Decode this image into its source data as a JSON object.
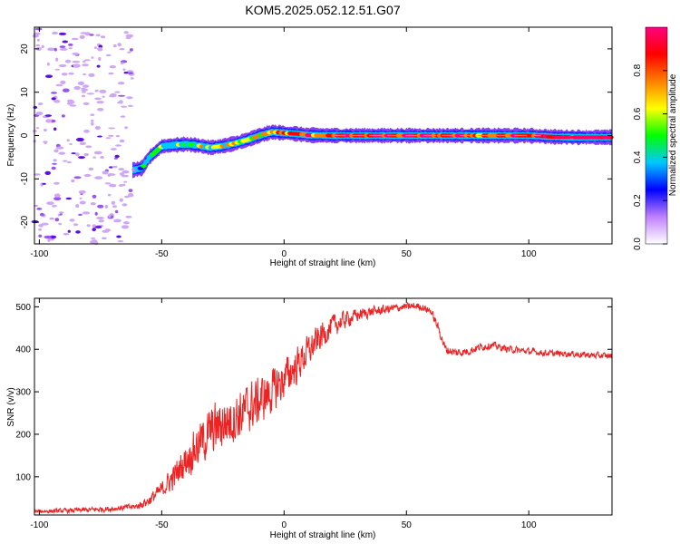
{
  "title": "KOM5.2025.052.12.51.G07",
  "chart_data": [
    {
      "type": "heatmap",
      "xlabel": "Height of straight line (km)",
      "ylabel": "Frequency (Hz)",
      "xlim": [
        -102,
        134
      ],
      "ylim": [
        -25,
        25
      ],
      "xticks": [
        -100,
        -50,
        0,
        50,
        100
      ],
      "yticks": [
        -20,
        -10,
        0,
        10,
        20
      ],
      "grid": false,
      "colorbar": {
        "label": "Normalized spectral amplitude",
        "range": [
          0,
          1
        ],
        "ticks": [
          "0.0",
          "0.2",
          "0.4",
          "0.6",
          "0.8"
        ],
        "colors": [
          "#ffffff",
          "#c080ff",
          "#0000ff",
          "#00c8ff",
          "#00ff00",
          "#ffff00",
          "#ff8000",
          "#ff0000",
          "#ff0080"
        ]
      },
      "noise_region_x": [
        -102,
        -62
      ],
      "ridge": {
        "x": [
          -62,
          -58,
          -55,
          -50,
          -45,
          -40,
          -35,
          -30,
          -25,
          -20,
          -15,
          -10,
          -5,
          0,
          5,
          10,
          20,
          40,
          60,
          80,
          100,
          110,
          120,
          134
        ],
        "freq": [
          -8,
          -7.5,
          -5,
          -2.5,
          -2.2,
          -2,
          -2.3,
          -2.8,
          -2.4,
          -1.8,
          -1,
          0,
          0.8,
          0.6,
          0.4,
          0.1,
          0,
          0,
          0,
          0,
          0,
          -0.3,
          -0.4,
          -0.4
        ],
        "amp": [
          0.2,
          0.3,
          0.35,
          0.4,
          0.45,
          0.45,
          0.5,
          0.45,
          0.5,
          0.5,
          0.55,
          0.6,
          0.65,
          0.7,
          0.7,
          0.75,
          0.8,
          0.8,
          0.85,
          0.75,
          0.8,
          0.85,
          0.9,
          0.95
        ]
      }
    },
    {
      "type": "line",
      "xlabel": "Height of straight line (km)",
      "ylabel": "SNR (v/v)",
      "xlim": [
        -102,
        134
      ],
      "ylim": [
        10,
        520
      ],
      "xticks": [
        -100,
        -50,
        0,
        50,
        100
      ],
      "yticks": [
        100,
        200,
        300,
        400,
        500
      ],
      "grid": false,
      "series": [
        {
          "color": "#ee2222",
          "envelope_x": [
            -102,
            -90,
            -80,
            -70,
            -60,
            -55,
            -50,
            -45,
            -40,
            -35,
            -30,
            -25,
            -20,
            -15,
            -10,
            -5,
            0,
            5,
            10,
            15,
            20,
            25,
            30,
            35,
            40,
            45,
            50,
            55,
            60,
            63,
            66,
            70,
            75,
            80,
            85,
            90,
            95,
            100,
            105,
            110,
            115,
            120,
            125,
            130,
            134
          ],
          "envelope_y": [
            18,
            20,
            22,
            25,
            30,
            45,
            70,
            100,
            140,
            175,
            205,
            225,
            240,
            260,
            280,
            300,
            330,
            360,
            395,
            430,
            455,
            470,
            480,
            488,
            492,
            497,
            500,
            502,
            490,
            450,
            400,
            392,
            395,
            405,
            410,
            402,
            398,
            395,
            392,
            390,
            390,
            388,
            386,
            385,
            384
          ],
          "noise_amplitude_x": [
            -102,
            -60,
            -50,
            -40,
            -30,
            -20,
            -10,
            0,
            10,
            20,
            30,
            40,
            50,
            60,
            66,
            80,
            100,
            134
          ],
          "noise_amplitude_y": [
            6,
            10,
            25,
            55,
            80,
            80,
            75,
            65,
            50,
            35,
            20,
            15,
            12,
            12,
            15,
            12,
            10,
            10
          ]
        }
      ]
    }
  ]
}
